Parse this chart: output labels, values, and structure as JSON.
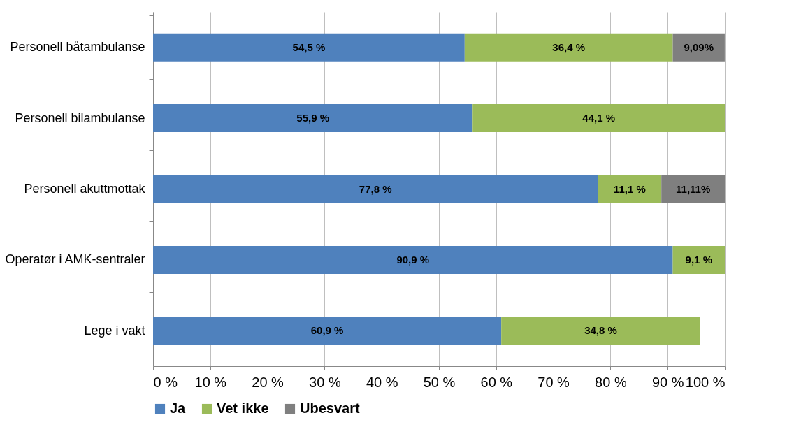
{
  "chart_data": {
    "type": "bar",
    "orientation": "horizontal",
    "stacked": true,
    "categories": [
      "Personell båtambulanse",
      "Personell bilambulanse",
      "Personell akuttmottak",
      "Operatør i AMK-sentraler",
      "Lege i vakt"
    ],
    "series": [
      {
        "name": "Ja",
        "color": "#4f81bd",
        "values": [
          54.5,
          55.9,
          77.8,
          90.9,
          60.9
        ],
        "value_labels": [
          "54,5 %",
          "55,9 %",
          "77,8 %",
          "90,9 %",
          "60,9 %"
        ]
      },
      {
        "name": "Vet ikke",
        "color": "#9bbb59",
        "values": [
          36.4,
          44.1,
          11.1,
          9.1,
          34.8
        ],
        "value_labels": [
          "36,4 %",
          "44,1 %",
          "11,1 %",
          "9,1 %",
          "34,8 %"
        ]
      },
      {
        "name": "Ubesvart",
        "color": "#7f7f7f",
        "values": [
          9.09,
          null,
          11.11,
          null,
          null
        ],
        "value_labels": [
          "9,09%",
          null,
          "11,11%",
          null,
          null
        ]
      }
    ],
    "xlim": [
      0,
      100
    ],
    "xticks": [
      {
        "value": 0,
        "label": "0 %"
      },
      {
        "value": 10,
        "label": "10 %"
      },
      {
        "value": 20,
        "label": "20 %"
      },
      {
        "value": 30,
        "label": "30 %"
      },
      {
        "value": 40,
        "label": "40 %"
      },
      {
        "value": 50,
        "label": "50 %"
      },
      {
        "value": 60,
        "label": "60 %"
      },
      {
        "value": 70,
        "label": "70 %"
      },
      {
        "value": 80,
        "label": "80 %"
      },
      {
        "value": 90,
        "label": "90 %"
      },
      {
        "value": 100,
        "label": "100 %"
      }
    ],
    "grid": "x",
    "legend": "bottom"
  }
}
